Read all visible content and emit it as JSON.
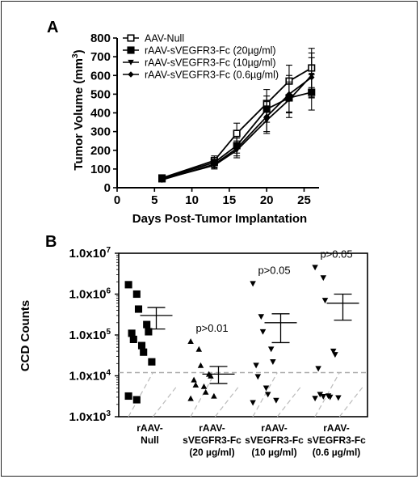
{
  "chart_data": [
    {
      "panel": "A",
      "type": "line",
      "xlabel": "Days Post-Tumor Implantation",
      "ylabel": "Tumor Volume (mm³)",
      "ylabel_main": "Tumor Volume (mm",
      "ylabel_sup": "3",
      "ylabel_close": ")",
      "xlim": [
        0,
        27
      ],
      "ylim": [
        0,
        800
      ],
      "xticks": [
        0,
        5,
        10,
        15,
        20,
        25
      ],
      "yticks": [
        0,
        100,
        200,
        300,
        400,
        500,
        600,
        700,
        800
      ],
      "legend_position": "top-left",
      "x": [
        6,
        13,
        16,
        20,
        23,
        26
      ],
      "series": [
        {
          "name": "AAV-Null",
          "marker": "square-open",
          "values": [
            52,
            145,
            290,
            450,
            570,
            640
          ],
          "errors": [
            10,
            25,
            55,
            75,
            85,
            105
          ]
        },
        {
          "name": "rAAV-sVEGFR3-Fc (20µg/ml)",
          "marker": "square",
          "values": [
            48,
            135,
            225,
            420,
            480,
            510
          ],
          "errors": [
            10,
            25,
            40,
            70,
            75,
            95
          ]
        },
        {
          "name": "rAAV-sVEGFR3-Fc (10µg/ml)",
          "marker": "triangle-down",
          "values": [
            45,
            120,
            200,
            360,
            470,
            600
          ],
          "errors": [
            10,
            20,
            40,
            70,
            95,
            120
          ]
        },
        {
          "name": "rAAV-sVEGFR3-Fc (0.6µg/ml)",
          "marker": "diamond",
          "values": [
            42,
            125,
            210,
            380,
            500,
            590
          ],
          "errors": [
            10,
            20,
            40,
            80,
            100,
            105
          ]
        }
      ]
    },
    {
      "panel": "B",
      "type": "scatter",
      "ylabel": "CCD Counts",
      "yscale": "log",
      "ylim": [
        1000,
        10000000
      ],
      "yticks": [
        "1.0x10",
        "1.0x10",
        "1.0x10",
        "1.0x10",
        "1.0x10"
      ],
      "ytick_exponents": [
        "3",
        "4",
        "5",
        "6",
        "7"
      ],
      "threshold": 12000,
      "groups": [
        {
          "label_lines": [
            "rAAV-",
            "Null"
          ],
          "marker": "square",
          "annotation": "",
          "mean": 300000,
          "sem_low": 140000,
          "sem_high": 470000,
          "points": [
            1700000,
            1000000,
            430000,
            180000,
            120000,
            110000,
            78000,
            55000,
            38000,
            22000,
            3200,
            2600
          ]
        },
        {
          "label_lines": [
            "rAAV-",
            "sVEGFR3-Fc",
            "(20 µg/ml)"
          ],
          "marker": "triangle-up",
          "annotation": "p>0.01",
          "mean": 11000,
          "sem_low": 6500,
          "sem_high": 17000,
          "points": [
            70000,
            45000,
            18000,
            11000,
            10000,
            8000,
            6000,
            5500,
            4000,
            3200,
            2800
          ]
        },
        {
          "label_lines": [
            "rAAV-",
            "sVEGFR3-Fc",
            "(10 µg/ml)"
          ],
          "marker": "triangle-down",
          "annotation": "p>0.05",
          "mean": 200000,
          "sem_low": 65000,
          "sem_high": 330000,
          "points": [
            1800000,
            280000,
            120000,
            45000,
            22000,
            18000,
            9500,
            5000,
            3500,
            2500,
            2200
          ]
        },
        {
          "label_lines": [
            "rAAV-",
            "sVEGFR3-Fc",
            "(0.6 µg/ml)"
          ],
          "marker": "triangle-down",
          "annotation": "p>0.05",
          "mean": 600000,
          "sem_low": 230000,
          "sem_high": 1000000,
          "points": [
            4500000,
            2500000,
            700000,
            40000,
            33000,
            15000,
            3500,
            3200,
            3000,
            2900,
            2800,
            3100
          ]
        }
      ]
    }
  ]
}
